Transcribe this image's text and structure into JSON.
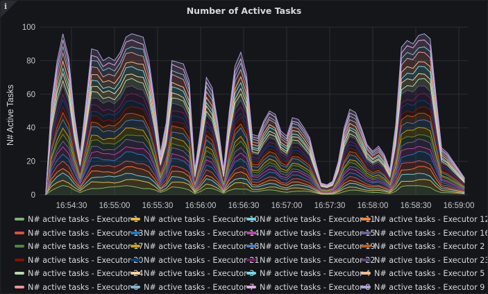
{
  "panel": {
    "title": "Number of Active Tasks",
    "info_icon": "i"
  },
  "chart_data": {
    "type": "area",
    "stacked": true,
    "title": "Number of Active Tasks",
    "xlabel": "",
    "ylabel": "N# Active Tasks",
    "ylim": [
      0,
      100
    ],
    "yticks": [
      "0",
      "20",
      "40",
      "60",
      "80",
      "100"
    ],
    "xticks": [
      "16:54:30",
      "16:55:00",
      "16:55:30",
      "16:56:00",
      "16:56:30",
      "16:57:00",
      "16:57:30",
      "16:58:00",
      "16:58:30",
      "16:59:00"
    ],
    "grid": true,
    "legend_position": "bottom",
    "x": [
      "16:54:12",
      "16:54:16",
      "16:54:20",
      "16:54:24",
      "16:54:28",
      "16:54:32",
      "16:54:36",
      "16:54:40",
      "16:54:44",
      "16:54:48",
      "16:54:52",
      "16:54:56",
      "16:55:00",
      "16:55:04",
      "16:55:08",
      "16:55:12",
      "16:55:16",
      "16:55:20",
      "16:55:24",
      "16:55:28",
      "16:55:32",
      "16:55:36",
      "16:55:40",
      "16:55:44",
      "16:55:48",
      "16:55:52",
      "16:55:56",
      "16:56:00",
      "16:56:04",
      "16:56:08",
      "16:56:12",
      "16:56:16",
      "16:56:20",
      "16:56:24",
      "16:56:28",
      "16:56:32",
      "16:56:36",
      "16:56:40",
      "16:56:44",
      "16:56:48",
      "16:56:52",
      "16:56:56",
      "16:57:00",
      "16:57:04",
      "16:57:08",
      "16:57:12",
      "16:57:16",
      "16:57:20",
      "16:57:24",
      "16:57:28",
      "16:57:32",
      "16:57:36",
      "16:57:40",
      "16:57:44",
      "16:57:48",
      "16:57:52",
      "16:57:56",
      "16:58:00",
      "16:58:04",
      "16:58:08",
      "16:58:12",
      "16:58:16",
      "16:58:20",
      "16:58:24",
      "16:58:28",
      "16:58:32",
      "16:58:36",
      "16:58:40",
      "16:58:44",
      "16:58:48",
      "16:58:52",
      "16:58:56",
      "16:59:00",
      "16:59:04"
    ],
    "totals": [
      0,
      55,
      80,
      96,
      82,
      48,
      24,
      55,
      87,
      86,
      80,
      82,
      80,
      85,
      94,
      96,
      95,
      94,
      80,
      55,
      25,
      43,
      80,
      79,
      78,
      68,
      15,
      40,
      70,
      64,
      43,
      15,
      50,
      77,
      85,
      72,
      36,
      35,
      44,
      50,
      48,
      38,
      35,
      46,
      45,
      40,
      34,
      20,
      7,
      6,
      8,
      20,
      40,
      51,
      49,
      40,
      30,
      26,
      29,
      24,
      15,
      42,
      88,
      92,
      90,
      95,
      96,
      93,
      60,
      28,
      25,
      20,
      15,
      10
    ],
    "series": [
      {
        "name": "N# active tasks - Executor 1",
        "color": "#7eb26d"
      },
      {
        "name": "N# active tasks - Executor 10",
        "color": "#eab839"
      },
      {
        "name": "N# active tasks - Executor 11",
        "color": "#6ed0e0"
      },
      {
        "name": "N# active tasks - Executor 12",
        "color": "#ef843c"
      },
      {
        "name": "N# active tasks - Executor 13",
        "color": "#e24d42"
      },
      {
        "name": "N# active tasks - Executor 14",
        "color": "#1f78c1"
      },
      {
        "name": "N# active tasks - Executor 15",
        "color": "#ba43a9"
      },
      {
        "name": "N# active tasks - Executor 16",
        "color": "#705da0"
      },
      {
        "name": "N# active tasks - Executor 17",
        "color": "#508642"
      },
      {
        "name": "N# active tasks - Executor 18",
        "color": "#cca300"
      },
      {
        "name": "N# active tasks - Executor 19",
        "color": "#447ebc"
      },
      {
        "name": "N# active tasks - Executor 2",
        "color": "#c15c17"
      },
      {
        "name": "N# active tasks - Executor 20",
        "color": "#890f02"
      },
      {
        "name": "N# active tasks - Executor 21",
        "color": "#0a437c"
      },
      {
        "name": "N# active tasks - Executor 22",
        "color": "#6d1f62"
      },
      {
        "name": "N# active tasks - Executor 23",
        "color": "#584477"
      },
      {
        "name": "N# active tasks - Executor 24",
        "color": "#b7dbab"
      },
      {
        "name": "N# active tasks - Executor 3",
        "color": "#f4d598"
      },
      {
        "name": "N# active tasks - Executor 4",
        "color": "#70dbed"
      },
      {
        "name": "N# active tasks - Executor 5",
        "color": "#f9ba8f"
      },
      {
        "name": "N# active tasks - Executor 6",
        "color": "#f29191"
      },
      {
        "name": "N# active tasks - Executor 7",
        "color": "#82b5d8"
      },
      {
        "name": "N# active tasks - Executor 8",
        "color": "#e5a8e2"
      },
      {
        "name": "N# active tasks - Executor 9",
        "color": "#aea2e0"
      }
    ]
  }
}
